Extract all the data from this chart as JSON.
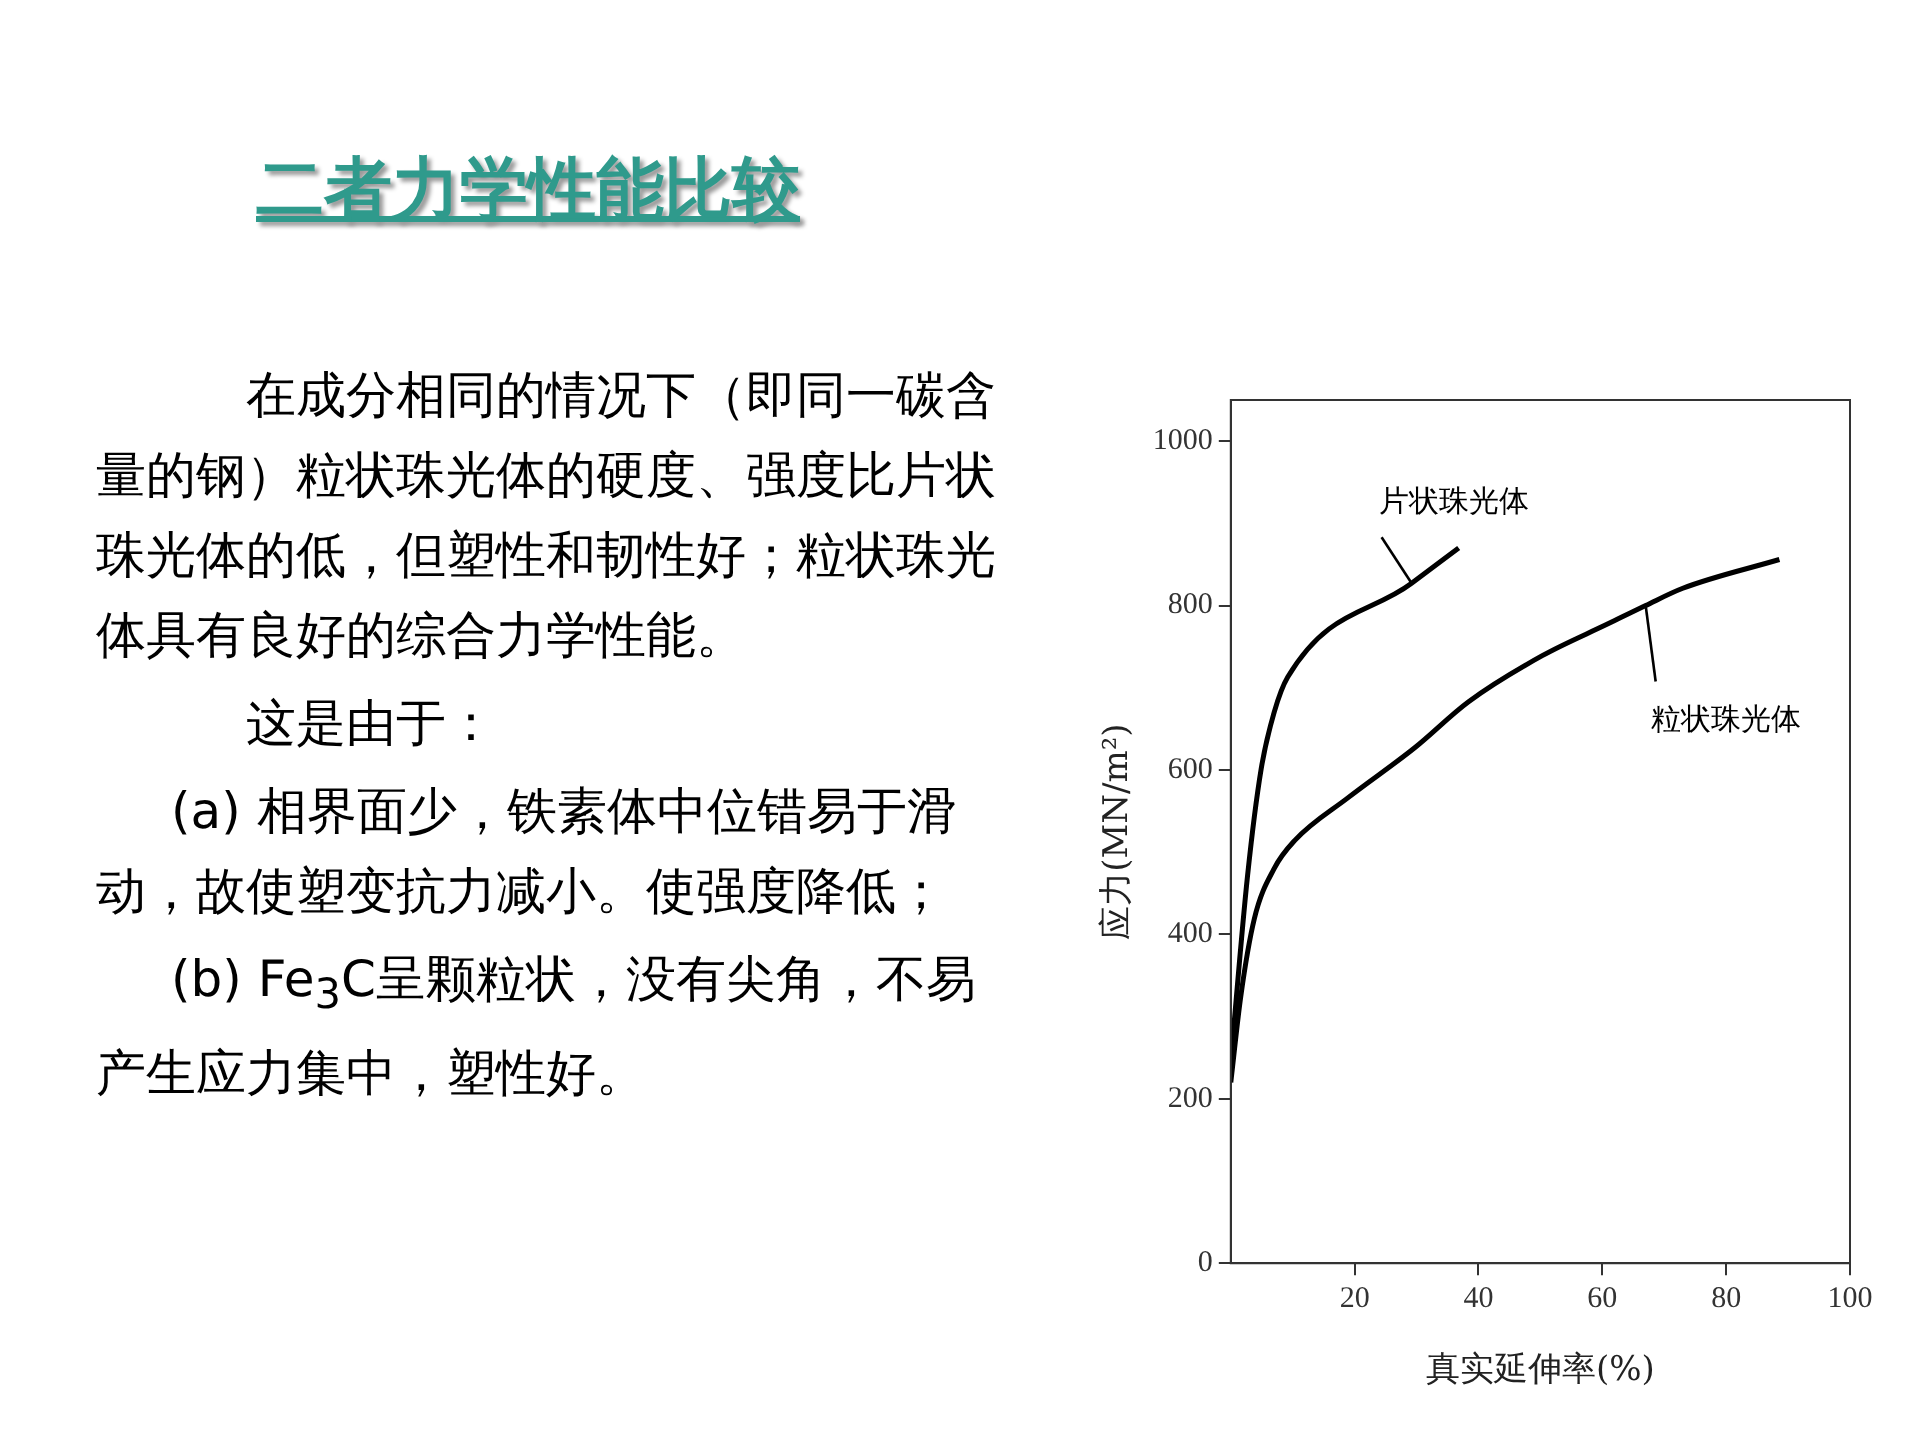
{
  "chart_data": {
    "type": "line",
    "title": "二者力学性能比较",
    "xlabel": "真实延伸率(%)",
    "ylabel": "应力(MN/m²)",
    "annotations": [
      "在成分相同的情况下（即同一碳含量的钢）粒状珠光体的硬度、强度比片状珠光体的低，但塑性和韧性好；粒状珠光体具有良好的综合力学性能。",
      "这是由于：",
      "(a) 相界面少，铁素体中位错易于滑动，故使塑变抗力减小。使强度降低；",
      "(b) Fe$_{3}$C呈颗粒状，没有尖角，不易产生应力集中，塑性好。"
    ],
    "series": [
      {
        "name": "片状珠光体",
        "color": "#000000",
        "x": [
          0,
          2.7,
          4.9,
          7,
          9.2,
          29.2,
          36.8
        ],
        "values": [
          246,
          471,
          601,
          670,
          713,
          827,
          870
        ]
      },
      {
        "name": "粒状珠光体",
        "color": "#000000",
        "x": [
          0,
          1.6,
          3.8,
          7,
          10.3,
          18.9,
          29.7,
          38.4,
          50.3,
          61,
          67,
          73,
          88.6
        ],
        "values": [
          220,
          324,
          419,
          480,
          514,
          566,
          627,
          683,
          739,
          778,
          800,
          821,
          856
        ]
      }
    ],
    "xlim": [
      0,
      100
    ],
    "xticks": [
      20,
      40,
      60,
      80,
      100
    ],
    "ylim": [
      0,
      1050
    ],
    "yticks": [
      0,
      200,
      400,
      600,
      800,
      1000
    ],
    "grid": false,
    "legend": false,
    "marker": "none",
    "line_style": "solid"
  }
}
